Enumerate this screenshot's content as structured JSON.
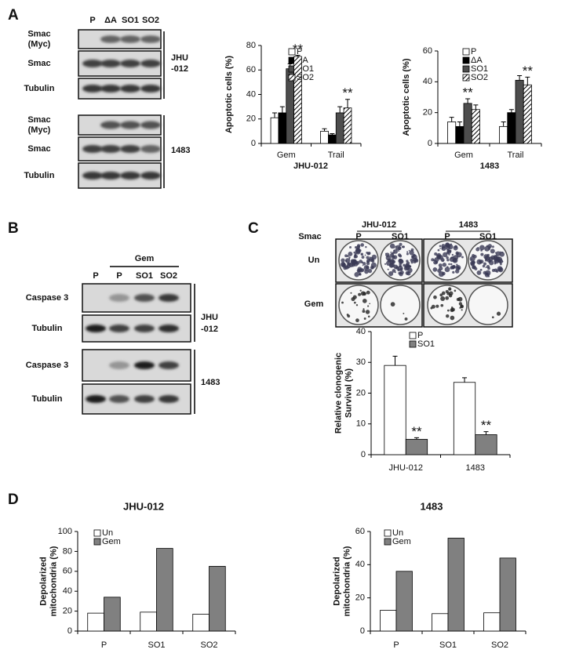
{
  "panels": [
    "A",
    "B",
    "C",
    "D"
  ],
  "panel_a_blot": {
    "lanes": [
      "P",
      "ΔA",
      "SO1",
      "SO2"
    ],
    "rows": [
      [
        "Smac",
        "(Myc)"
      ],
      [
        "Smac"
      ],
      [
        "Tubulin"
      ],
      [
        "Smac",
        "(Myc)"
      ],
      [
        "Smac"
      ],
      [
        "Tubulin"
      ]
    ],
    "cell_lines": [
      [
        "JHU",
        "-012"
      ],
      [
        "1483"
      ]
    ]
  },
  "panel_b_blot": {
    "treatment": "Gem",
    "lanes": [
      "P",
      "P",
      "SO1",
      "SO2"
    ],
    "rows": [
      "Caspase 3",
      "Tubulin",
      "Caspase 3",
      "Tubulin"
    ],
    "cell_lines": [
      [
        "JHU",
        "-012"
      ],
      [
        "1483"
      ]
    ]
  },
  "panel_c_assay": {
    "row_header": "Smac",
    "cell_lines": [
      "JHU-012",
      "1483"
    ],
    "lanes": [
      "P",
      "SO1",
      "P",
      "SO1"
    ],
    "rows": [
      "Un",
      "Gem"
    ]
  },
  "chart_data": [
    {
      "type": "bar",
      "xlabel": "JHU-012",
      "ylabel": [
        "Apoptotic cells (%)"
      ],
      "categories": [
        "Gem",
        "Trail"
      ],
      "series": [
        {
          "name": "P",
          "color": "#ffffff",
          "values": [
            21,
            10
          ],
          "errors": [
            4,
            2
          ]
        },
        {
          "name": "ΔA",
          "color": "#000000",
          "values": [
            25,
            7
          ],
          "errors": [
            5,
            1
          ]
        },
        {
          "name": "SO1",
          "color": "#4d4d4d",
          "values": [
            61,
            25
          ],
          "errors": [
            4,
            5
          ]
        },
        {
          "name": "SO2",
          "color": "#ffffff",
          "hatch": true,
          "values": [
            71,
            29
          ],
          "errors": [
            1,
            7
          ]
        }
      ],
      "annotations": [
        "**",
        "**"
      ],
      "ylim": [
        0,
        80
      ],
      "yticks": [
        0,
        20,
        40,
        60,
        80
      ]
    },
    {
      "type": "bar",
      "xlabel": "1483",
      "ylabel": [
        "Apoptotic cells (%)"
      ],
      "categories": [
        "Gem",
        "Trail"
      ],
      "series": [
        {
          "name": "P",
          "color": "#ffffff",
          "values": [
            14,
            11
          ],
          "errors": [
            3,
            3
          ]
        },
        {
          "name": "ΔA",
          "color": "#000000",
          "values": [
            11,
            20
          ],
          "errors": [
            3,
            2
          ]
        },
        {
          "name": "SO1",
          "color": "#4d4d4d",
          "values": [
            26,
            41
          ],
          "errors": [
            3,
            3
          ]
        },
        {
          "name": "SO2",
          "color": "#ffffff",
          "hatch": true,
          "values": [
            22,
            38
          ],
          "errors": [
            3,
            5
          ]
        }
      ],
      "annotations": [
        "**",
        "**"
      ],
      "ylim": [
        0,
        60
      ],
      "yticks": [
        0,
        20,
        40,
        60
      ]
    },
    {
      "type": "bar",
      "ylabel": [
        "Relative clonogenic",
        "Survival (%)"
      ],
      "categories": [
        "JHU-012",
        "1483"
      ],
      "series": [
        {
          "name": "P",
          "color": "#ffffff",
          "values": [
            29,
            23.5
          ],
          "errors": [
            3,
            1.5
          ]
        },
        {
          "name": "SO1",
          "color": "#808080",
          "values": [
            5,
            6.5
          ],
          "errors": [
            0.5,
            1
          ]
        }
      ],
      "annotations": [
        "**",
        "**"
      ],
      "ylim": [
        0,
        40
      ],
      "yticks": [
        0,
        10,
        20,
        30,
        40
      ]
    },
    {
      "type": "bar",
      "title": "JHU-012",
      "ylabel": [
        "Depolarized",
        "mitochondria (%)"
      ],
      "categories": [
        "P",
        "SO1",
        "SO2"
      ],
      "series": [
        {
          "name": "Un",
          "color": "#ffffff",
          "values": [
            18,
            19,
            17
          ]
        },
        {
          "name": "Gem",
          "color": "#808080",
          "values": [
            34,
            83,
            65
          ]
        }
      ],
      "ylim": [
        0,
        100
      ],
      "yticks": [
        0,
        20,
        40,
        60,
        80,
        100
      ]
    },
    {
      "type": "bar",
      "title": "1483",
      "ylabel": [
        "Depolarized",
        "mitochondria (%)"
      ],
      "categories": [
        "P",
        "SO1",
        "SO2"
      ],
      "series": [
        {
          "name": "Un",
          "color": "#ffffff",
          "values": [
            12.5,
            10.5,
            11
          ]
        },
        {
          "name": "Gem",
          "color": "#808080",
          "values": [
            36,
            56,
            44
          ]
        }
      ],
      "ylim": [
        0,
        60
      ],
      "yticks": [
        0,
        20,
        40,
        60
      ]
    }
  ]
}
